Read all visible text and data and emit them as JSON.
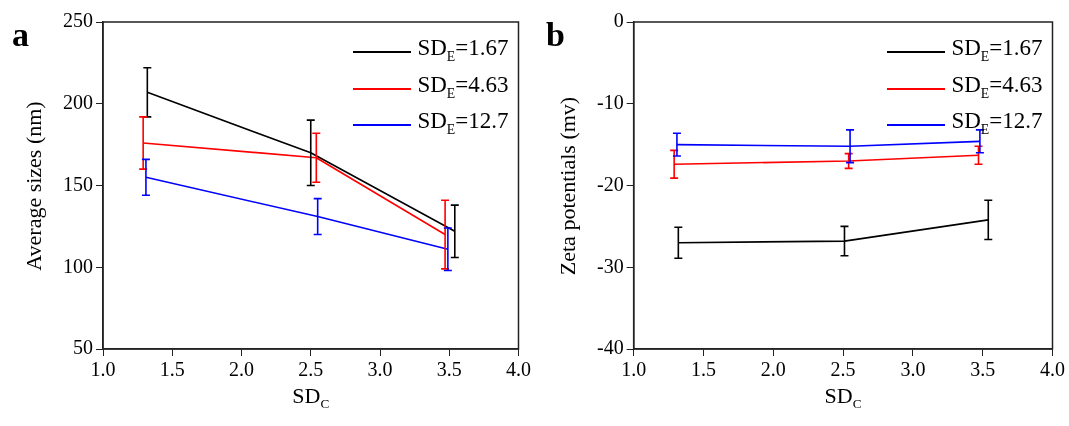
{
  "chart_data": [
    {
      "type": "line",
      "title": "a",
      "xlabel": "SD$_{C}$",
      "ylabel": "Average sizes (nm)",
      "xlim": [
        1.0,
        4.0
      ],
      "xticks": [
        {
          "value": 1.0,
          "label": "1.0"
        },
        {
          "value": 1.5,
          "label": "1.5"
        },
        {
          "value": 2.0,
          "label": "2.0"
        },
        {
          "value": 2.5,
          "label": "2.5"
        },
        {
          "value": 3.0,
          "label": "3.0"
        },
        {
          "value": 3.5,
          "label": "3.5"
        },
        {
          "value": 4.0,
          "label": "4.0"
        }
      ],
      "ylim": [
        50,
        250
      ],
      "yticks": [
        50,
        100,
        150,
        200,
        250
      ],
      "grid": false,
      "legend": "top right",
      "marker": "none",
      "line_style": "solid",
      "series": [
        {
          "name": "SD$_{E}$=1.67",
          "color": "#000000",
          "x": [
            1.32,
            2.5,
            3.54
          ],
          "values": [
            207,
            170,
            122
          ],
          "errors": [
            15,
            20,
            16
          ]
        },
        {
          "name": "SD$_{E}$=4.63",
          "color": "#ff0000",
          "x": [
            1.29,
            2.54,
            3.47
          ],
          "values": [
            176,
            167,
            120
          ],
          "errors": [
            16,
            15,
            21
          ]
        },
        {
          "name": "SD$_{E}$=12.7",
          "color": "#0000ff",
          "x": [
            1.31,
            2.55,
            3.49
          ],
          "values": [
            155,
            131,
            111
          ],
          "errors": [
            11,
            11,
            13
          ]
        }
      ]
    },
    {
      "type": "line",
      "title": "b",
      "xlabel": "SD$_{C}$",
      "ylabel": "Zeta potentials (mv)",
      "xlim": [
        1.0,
        4.0
      ],
      "xticks": [
        {
          "value": 1.0,
          "label": "1.0"
        },
        {
          "value": 1.5,
          "label": "1.5"
        },
        {
          "value": 2.0,
          "label": "2.0"
        },
        {
          "value": 2.5,
          "label": "2.5"
        },
        {
          "value": 3.0,
          "label": "3.0"
        },
        {
          "value": 3.5,
          "label": "3.5"
        },
        {
          "value": 4.0,
          "label": "4.0"
        }
      ],
      "ylim": [
        -40,
        0
      ],
      "yticks": [
        -40,
        -30,
        -20,
        -10,
        0
      ],
      "grid": false,
      "legend": "top right",
      "marker": "none",
      "line_style": "solid",
      "series": [
        {
          "name": "SD$_{E}$=1.67",
          "color": "#000000",
          "x": [
            1.32,
            2.51,
            3.54
          ],
          "values": [
            -27.0,
            -26.8,
            -24.2
          ],
          "errors": [
            1.9,
            1.8,
            2.4
          ]
        },
        {
          "name": "SD$_{E}$=4.63",
          "color": "#ff0000",
          "x": [
            1.29,
            2.54,
            3.47
          ],
          "values": [
            -17.4,
            -17.0,
            -16.3
          ],
          "errors": [
            1.7,
            0.9,
            1.1
          ]
        },
        {
          "name": "SD$_{E}$=12.7",
          "color": "#0000ff",
          "x": [
            1.31,
            2.55,
            3.48
          ],
          "values": [
            -15.0,
            -15.2,
            -14.6
          ],
          "errors": [
            1.4,
            2.0,
            1.4
          ]
        }
      ]
    }
  ]
}
